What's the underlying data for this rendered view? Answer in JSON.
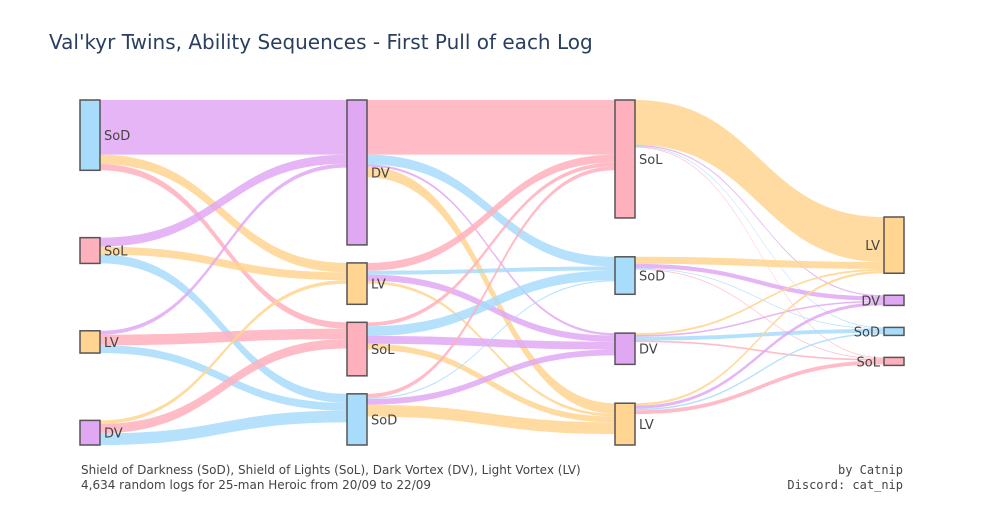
{
  "chart_data": {
    "type": "sankey",
    "title": "Val'kyr Twins, Ability Sequences - First Pull of each Log",
    "footnote": {
      "line1": "Shield of Darkness (SoD), Shield of Lights (SoL), Dark Vortex (DV), Light Vortex (LV)",
      "line2": "4,634 random logs for 25-man Heroic from 20/09 to 22/09"
    },
    "credits": {
      "line1": "by Catnip",
      "line2": "Discord: cat_nip"
    },
    "colors": {
      "SoD": "#a8dcfb",
      "SoL": "#ffb0bd",
      "LV": "#ffd591",
      "DV": "#e0a8f3",
      "node_border": "#555555"
    },
    "stages": [
      [
        "SoD",
        "SoL",
        "LV",
        "DV"
      ],
      [
        "DV",
        "LV",
        "SoL",
        "SoD"
      ],
      [
        "SoL",
        "SoD",
        "DV",
        "LV"
      ],
      [
        "LV",
        "DV",
        "SoD",
        "SoL"
      ]
    ],
    "links": [
      {
        "stage": 0,
        "source": "SoD",
        "target": "DV",
        "value": 1400
      },
      {
        "stage": 0,
        "source": "SoD",
        "target": "LV",
        "value": 240
      },
      {
        "stage": 0,
        "source": "SoD",
        "target": "SoL",
        "value": 160
      },
      {
        "stage": 0,
        "source": "SoL",
        "target": "DV",
        "value": 230
      },
      {
        "stage": 0,
        "source": "SoL",
        "target": "LV",
        "value": 200
      },
      {
        "stage": 0,
        "source": "SoL",
        "target": "SoD",
        "value": 230
      },
      {
        "stage": 0,
        "source": "LV",
        "target": "DV",
        "value": 100
      },
      {
        "stage": 0,
        "source": "LV",
        "target": "SoL",
        "value": 270
      },
      {
        "stage": 0,
        "source": "LV",
        "target": "SoD",
        "value": 200
      },
      {
        "stage": 0,
        "source": "DV",
        "target": "LV",
        "value": 90
      },
      {
        "stage": 0,
        "source": "DV",
        "target": "SoL",
        "value": 240
      },
      {
        "stage": 0,
        "source": "DV",
        "target": "SoD",
        "value": 300
      },
      {
        "stage": 1,
        "source": "DV",
        "target": "SoL",
        "value": 1400
      },
      {
        "stage": 1,
        "source": "DV",
        "target": "SoD",
        "value": 250
      },
      {
        "stage": 1,
        "source": "DV",
        "target": "DV",
        "value": 60
      },
      {
        "stage": 1,
        "source": "DV",
        "target": "LV",
        "value": 270
      },
      {
        "stage": 1,
        "source": "LV",
        "target": "SoL",
        "value": 200
      },
      {
        "stage": 1,
        "source": "LV",
        "target": "SoD",
        "value": 100
      },
      {
        "stage": 1,
        "source": "LV",
        "target": "DV",
        "value": 160
      },
      {
        "stage": 1,
        "source": "LV",
        "target": "LV",
        "value": 70
      },
      {
        "stage": 1,
        "source": "SoL",
        "target": "SoL",
        "value": 100
      },
      {
        "stage": 1,
        "source": "SoL",
        "target": "SoD",
        "value": 250
      },
      {
        "stage": 1,
        "source": "SoL",
        "target": "DV",
        "value": 200
      },
      {
        "stage": 1,
        "source": "SoL",
        "target": "LV",
        "value": 150
      },
      {
        "stage": 1,
        "source": "SoD",
        "target": "SoL",
        "value": 100
      },
      {
        "stage": 1,
        "source": "SoD",
        "target": "SoD",
        "value": 30
      },
      {
        "stage": 1,
        "source": "SoD",
        "target": "DV",
        "value": 150
      },
      {
        "stage": 1,
        "source": "SoD",
        "target": "LV",
        "value": 300
      },
      {
        "stage": 2,
        "source": "SoL",
        "target": "LV",
        "value": 1150
      },
      {
        "stage": 2,
        "source": "SoL",
        "target": "DV",
        "value": 30
      },
      {
        "stage": 2,
        "source": "SoL",
        "target": "SoD",
        "value": 20
      },
      {
        "stage": 2,
        "source": "SoL",
        "target": "SoL",
        "value": 20
      },
      {
        "stage": 2,
        "source": "SoD",
        "target": "LV",
        "value": 180
      },
      {
        "stage": 2,
        "source": "SoD",
        "target": "DV",
        "value": 110
      },
      {
        "stage": 2,
        "source": "SoD",
        "target": "SoD",
        "value": 20
      },
      {
        "stage": 2,
        "source": "SoD",
        "target": "SoL",
        "value": 20
      },
      {
        "stage": 2,
        "source": "DV",
        "target": "LV",
        "value": 50
      },
      {
        "stage": 2,
        "source": "DV",
        "target": "DV",
        "value": 40
      },
      {
        "stage": 2,
        "source": "DV",
        "target": "SoD",
        "value": 100
      },
      {
        "stage": 2,
        "source": "DV",
        "target": "SoL",
        "value": 40
      },
      {
        "stage": 2,
        "source": "LV",
        "target": "LV",
        "value": 60
      },
      {
        "stage": 2,
        "source": "LV",
        "target": "DV",
        "value": 80
      },
      {
        "stage": 2,
        "source": "LV",
        "target": "SoD",
        "value": 40
      },
      {
        "stage": 2,
        "source": "LV",
        "target": "SoL",
        "value": 100
      }
    ]
  }
}
